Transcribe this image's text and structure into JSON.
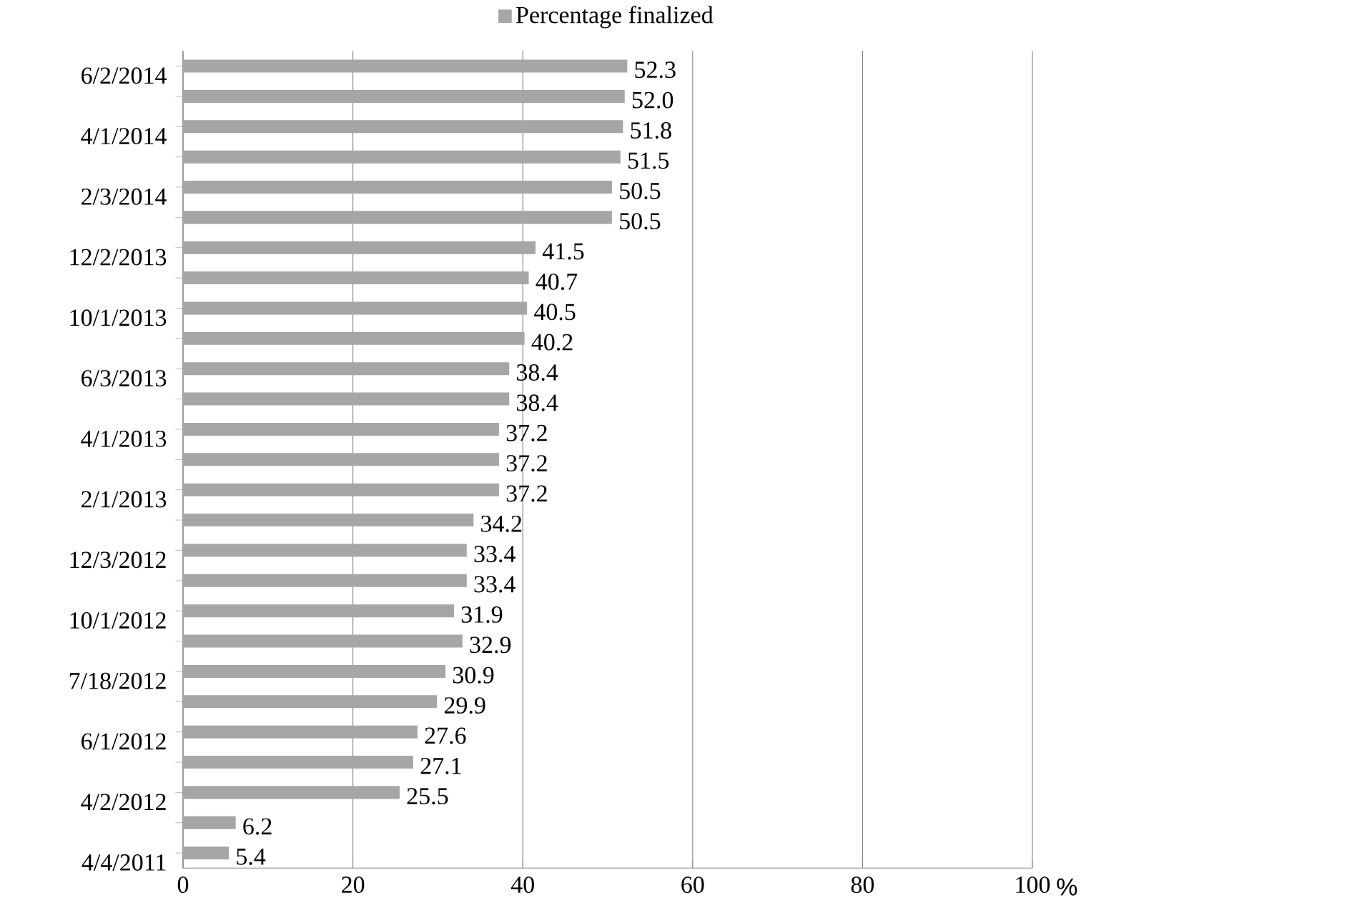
{
  "chart_data": {
    "type": "bar",
    "orientation": "horizontal",
    "categories": [
      "6/2/2014",
      null,
      "4/1/2014",
      null,
      "2/3/2014",
      null,
      "12/2/2013",
      null,
      "10/1/2013",
      null,
      "6/3/2013",
      null,
      "4/1/2013",
      null,
      "2/1/2013",
      null,
      "12/3/2012",
      null,
      "10/1/2012",
      null,
      "7/18/2012",
      null,
      "6/1/2012",
      null,
      "4/2/2012",
      null,
      "4/4/2011"
    ],
    "series": [
      {
        "name": "Percentage finalized",
        "color": "#a6a6a6",
        "values": [
          52.3,
          52.0,
          51.8,
          51.5,
          50.5,
          50.5,
          41.5,
          40.7,
          40.5,
          40.2,
          38.4,
          38.4,
          37.2,
          37.2,
          37.2,
          34.2,
          33.4,
          33.4,
          31.9,
          32.9,
          30.9,
          29.9,
          27.6,
          27.1,
          25.5,
          6.2,
          5.4
        ],
        "value_labels": [
          "52.3",
          "52.0",
          "51.8",
          "51.5",
          "50.5",
          "50.5",
          "41.5",
          "40.7",
          "40.5",
          "40.2",
          "38.4",
          "38.4",
          "37.2",
          "37.2",
          "37.2",
          "34.2",
          "33.4",
          "33.4",
          "31.9",
          "32.9",
          "30.9",
          "29.9",
          "27.6",
          "27.1",
          "25.5",
          "6.2",
          "5.4"
        ]
      }
    ],
    "xlim": [
      0,
      100
    ],
    "xticks": [
      0,
      20,
      40,
      60,
      80,
      100
    ],
    "xlabel": "%",
    "grid": "x",
    "legend": "top"
  }
}
